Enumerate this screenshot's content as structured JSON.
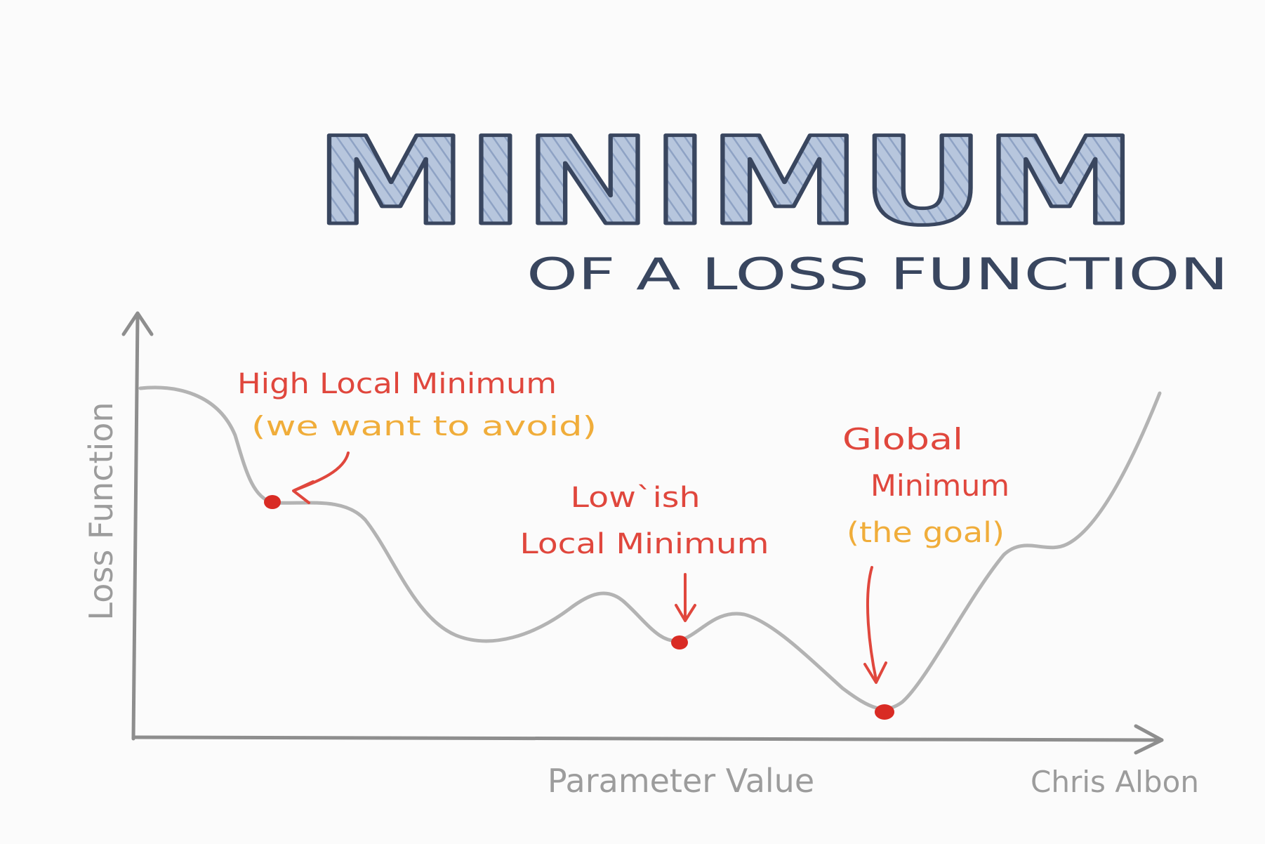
{
  "title": "MINIMUM",
  "subtitle": "OF A LOSS FUNCTION",
  "axes": {
    "x_label": "Parameter Value",
    "y_label": "Loss Function"
  },
  "annotations": {
    "high_local": {
      "line1": "High Local Minimum",
      "line2": "(we want to avoid)"
    },
    "lowish_local": {
      "line1": "Low`ish",
      "line2": "Local Minimum"
    },
    "global": {
      "line1": "Global",
      "line2": "Minimum",
      "line3": "(the goal)"
    }
  },
  "signature": "Chris Albon",
  "colors": {
    "title_fill": "#a9bad6",
    "title_outline": "#39465f",
    "subtitle": "#39465f",
    "axis": "#8e8e8e",
    "curve": "#b3b3b3",
    "annotation_red": "#e0473d",
    "annotation_orange": "#f0ad3a",
    "point": "#d92b24",
    "axis_text": "#9c9c9c"
  }
}
